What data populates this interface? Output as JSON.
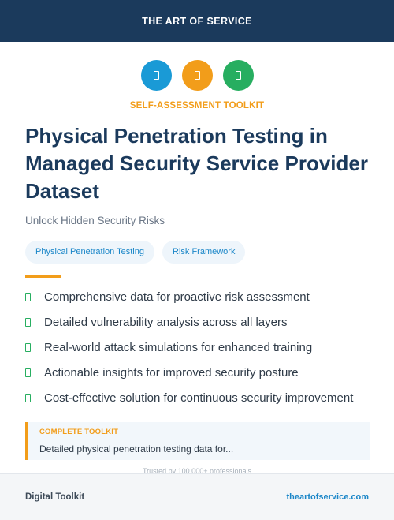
{
  "header": {
    "brand": "THE ART OF SERVICE"
  },
  "icons": [
    {
      "name": "blue-box-icon",
      "color": "#1a9ad6"
    },
    {
      "name": "orange-box-icon",
      "color": "#f29d1a"
    },
    {
      "name": "green-box-icon",
      "color": "#27ae60"
    }
  ],
  "kicker": "SELF-ASSESSMENT TOOLKIT",
  "title": "Physical Penetration Testing in Managed Security Service Provider Dataset",
  "subtitle": "Unlock Hidden Security Risks",
  "tags": [
    "Physical Penetration Testing",
    "Risk Framework"
  ],
  "features": [
    "Comprehensive data for proactive risk assessment",
    "Detailed vulnerability analysis across all layers",
    "Real-world attack simulations for enhanced training",
    "Actionable insights for improved security posture",
    "Cost-effective solution for continuous security improvement"
  ],
  "callout": {
    "label": "COMPLETE TOOLKIT",
    "text": "Detailed physical penetration testing data for..."
  },
  "trusted": "Trusted by 100,000+ professionals",
  "footer": {
    "left": "Digital Toolkit",
    "right": "theartofservice.com"
  },
  "colors": {
    "navy": "#1b3a5c",
    "orange": "#f29d1a",
    "blue": "#1a86c8",
    "green": "#27ae60"
  }
}
